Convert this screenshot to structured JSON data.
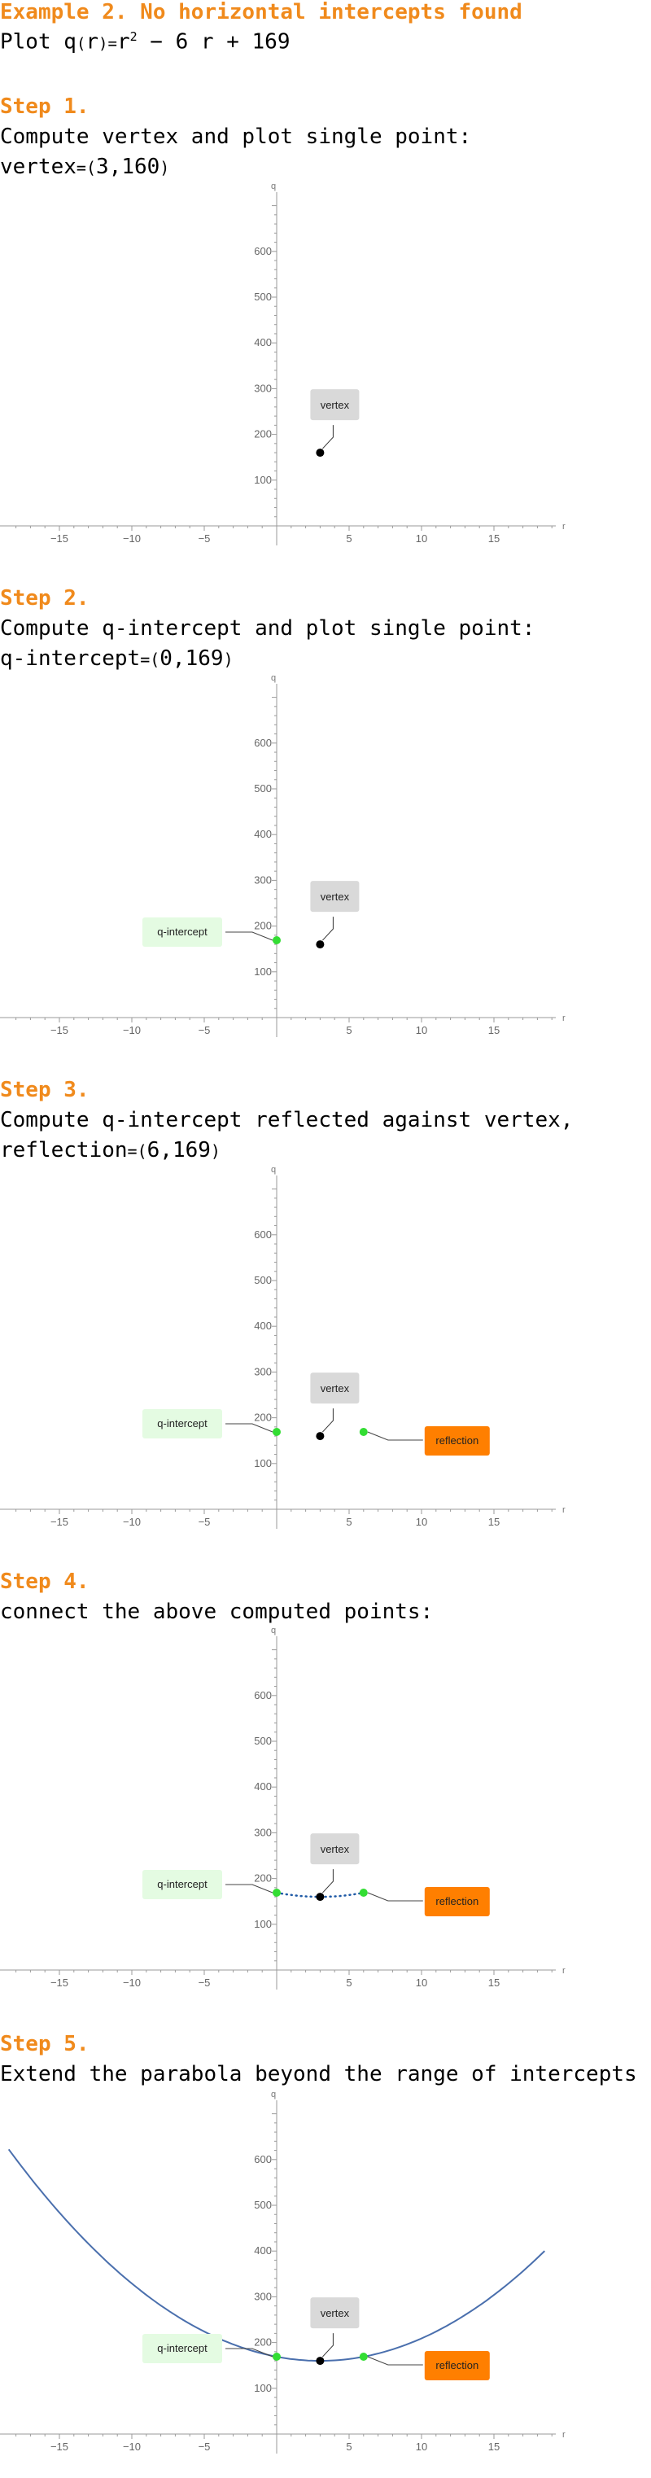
{
  "heading": "Example 2. No horizontal intercepts found",
  "plot_text": {
    "prefix": "Plot ",
    "fname": "q",
    "arg": "r",
    "eq": "=",
    "r": "r",
    "exp": "2",
    "rest": " − 6 r + 169"
  },
  "labels": {
    "vertex": "vertex",
    "q_intercept": "q-intercept",
    "reflection": "reflection"
  },
  "axis": {
    "x_name": "r",
    "y_name": "q"
  },
  "colors": {
    "accent": "#f08a1c",
    "vertex_point": "#000000",
    "intercept_point": "#33dd33",
    "curve": "#4a6fad",
    "vertex_label_bg": "#d9d9d9",
    "intercept_label_bg": "#e4fbe2",
    "reflection_label_bg": "#ff7f00"
  },
  "steps": [
    {
      "title": "Step 1.",
      "desc": "Compute vertex and plot single point:",
      "value_name": "vertex",
      "value_eq": "=",
      "value_open": "(",
      "value": "3,160",
      "value_close": ")"
    },
    {
      "title": "Step 2.",
      "desc": "Compute q-intercept and plot single point:",
      "value_name": "q-intercept",
      "value_eq": "=",
      "value_open": "(",
      "value": "0,169",
      "value_close": ")"
    },
    {
      "title": "Step 3.",
      "desc": "Compute q-intercept reflected against vertex,",
      "value_name": "reflection",
      "value_eq": "=",
      "value_open": "(",
      "value": "6,169",
      "value_close": ")"
    },
    {
      "title": "Step 4.",
      "desc": "connect the above computed points:"
    },
    {
      "title": "Step 5.",
      "desc": "Extend the parabola beyond the range of intercepts"
    }
  ],
  "chart_data": [
    {
      "type": "scatter",
      "xlabel": "r",
      "ylabel": "q",
      "xlim": [
        -19,
        19.5
      ],
      "ylim": [
        -30,
        730
      ],
      "xticks": [
        -15,
        -10,
        -5,
        5,
        10,
        15
      ],
      "yticks": [
        100,
        200,
        300,
        400,
        500,
        600
      ],
      "points": [
        {
          "name": "vertex",
          "x": 3,
          "y": 160
        }
      ],
      "curve": null
    },
    {
      "type": "scatter",
      "xlabel": "r",
      "ylabel": "q",
      "xlim": [
        -19,
        19.5
      ],
      "ylim": [
        -30,
        730
      ],
      "xticks": [
        -15,
        -10,
        -5,
        5,
        10,
        15
      ],
      "yticks": [
        100,
        200,
        300,
        400,
        500,
        600
      ],
      "points": [
        {
          "name": "vertex",
          "x": 3,
          "y": 160
        },
        {
          "name": "q-intercept",
          "x": 0,
          "y": 169
        }
      ],
      "curve": null
    },
    {
      "type": "scatter",
      "xlabel": "r",
      "ylabel": "q",
      "xlim": [
        -19,
        19.5
      ],
      "ylim": [
        -30,
        730
      ],
      "xticks": [
        -15,
        -10,
        -5,
        5,
        10,
        15
      ],
      "yticks": [
        100,
        200,
        300,
        400,
        500,
        600
      ],
      "points": [
        {
          "name": "vertex",
          "x": 3,
          "y": 160
        },
        {
          "name": "q-intercept",
          "x": 0,
          "y": 169
        },
        {
          "name": "reflection",
          "x": 6,
          "y": 169
        }
      ],
      "curve": null
    },
    {
      "type": "line",
      "xlabel": "r",
      "ylabel": "q",
      "xlim": [
        -19,
        19.5
      ],
      "ylim": [
        -30,
        730
      ],
      "xticks": [
        -15,
        -10,
        -5,
        5,
        10,
        15
      ],
      "yticks": [
        100,
        200,
        300,
        400,
        500,
        600
      ],
      "points": [
        {
          "name": "vertex",
          "x": 3,
          "y": 160
        },
        {
          "name": "q-intercept",
          "x": 0,
          "y": 169
        },
        {
          "name": "reflection",
          "x": 6,
          "y": 169
        }
      ],
      "curve": {
        "expr": "r^2 - 6r + 169",
        "a": 1,
        "b": -6,
        "c": 169,
        "x_range": [
          0,
          6
        ],
        "style": "dotted"
      }
    },
    {
      "type": "line",
      "xlabel": "r",
      "ylabel": "q",
      "xlim": [
        -19,
        19.5
      ],
      "ylim": [
        -30,
        730
      ],
      "xticks": [
        -15,
        -10,
        -5,
        5,
        10,
        15
      ],
      "yticks": [
        100,
        200,
        300,
        400,
        500,
        600
      ],
      "points": [
        {
          "name": "vertex",
          "x": 3,
          "y": 160
        },
        {
          "name": "q-intercept",
          "x": 0,
          "y": 169
        },
        {
          "name": "reflection",
          "x": 6,
          "y": 169
        }
      ],
      "curve": {
        "expr": "r^2 - 6r + 169",
        "a": 1,
        "b": -6,
        "c": 169,
        "x_range": [
          -18.5,
          18.5
        ],
        "style": "solid"
      }
    }
  ]
}
